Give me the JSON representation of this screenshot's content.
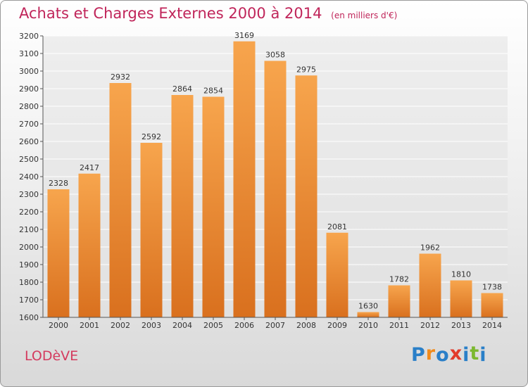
{
  "header": {
    "title": "Achats et Charges Externes 2000 à 2014",
    "subtitle": "(en milliers d'€)"
  },
  "footer": {
    "city": "LODèVE",
    "brand": "Proxiti",
    "brand_letters": [
      "P",
      "r",
      "o",
      "x",
      "i",
      "t",
      "i"
    ],
    "brand_colors": [
      "#2a7fc8",
      "#f08a1c",
      "#2a7fc8",
      "#e23a2a",
      "#2a7fc8",
      "#7cb82f",
      "#2a7fc8"
    ]
  },
  "colors": {
    "bar_top": "#f7a54d",
    "bar_bottom": "#d9701e",
    "grid": "#ffffff",
    "accent": "#c0255a"
  },
  "chart_data": {
    "type": "bar",
    "title": "Achats et Charges Externes 2000 à 2014",
    "subtitle": "(en milliers d'€)",
    "xlabel": "",
    "ylabel": "",
    "categories": [
      "2000",
      "2001",
      "2002",
      "2003",
      "2004",
      "2005",
      "2006",
      "2007",
      "2008",
      "2009",
      "2010",
      "2011",
      "2012",
      "2013",
      "2014"
    ],
    "values": [
      2328,
      2417,
      2932,
      2592,
      2864,
      2854,
      3169,
      3058,
      2975,
      2081,
      1630,
      1782,
      1962,
      1810,
      1738
    ],
    "ylim": [
      1600,
      3200
    ],
    "yticks": [
      1600,
      1700,
      1800,
      1900,
      2000,
      2100,
      2200,
      2300,
      2400,
      2500,
      2600,
      2700,
      2800,
      2900,
      3000,
      3100,
      3200
    ],
    "grid": true,
    "data_labels": true
  }
}
